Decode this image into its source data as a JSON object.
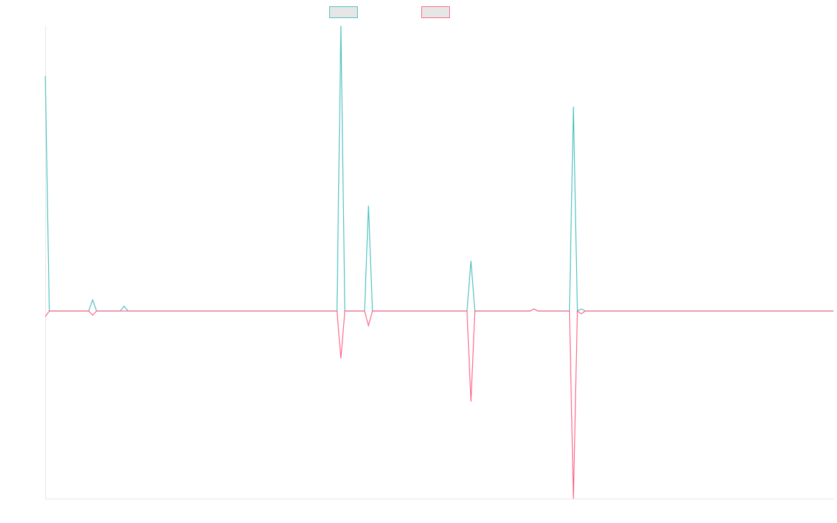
{
  "chart_data": {
    "type": "line",
    "x": [
      0,
      1,
      11,
      12,
      13,
      19,
      20,
      21,
      74,
      75,
      76,
      81,
      82,
      83,
      107,
      108,
      109,
      123,
      124,
      125,
      133,
      134,
      135,
      136,
      137,
      200
    ],
    "series": [
      {
        "color": "#4bc0c0",
        "values": [
          337,
          0,
          0,
          16,
          0,
          0,
          7,
          0,
          0,
          409,
          0,
          0,
          151,
          0,
          0,
          72,
          0,
          0,
          3,
          0,
          0,
          293,
          0,
          3,
          0,
          0
        ]
      },
      {
        "color": "#ff6384",
        "values": [
          -8,
          0,
          0,
          -6,
          0,
          0,
          0,
          0,
          0,
          -68,
          0,
          0,
          -21,
          0,
          0,
          -130,
          0,
          0,
          3,
          0,
          0,
          -269,
          0,
          -4,
          0,
          0
        ]
      }
    ],
    "xlim": [
      0,
      200
    ],
    "ylim": [
      -269,
      409
    ],
    "legend": "top"
  }
}
